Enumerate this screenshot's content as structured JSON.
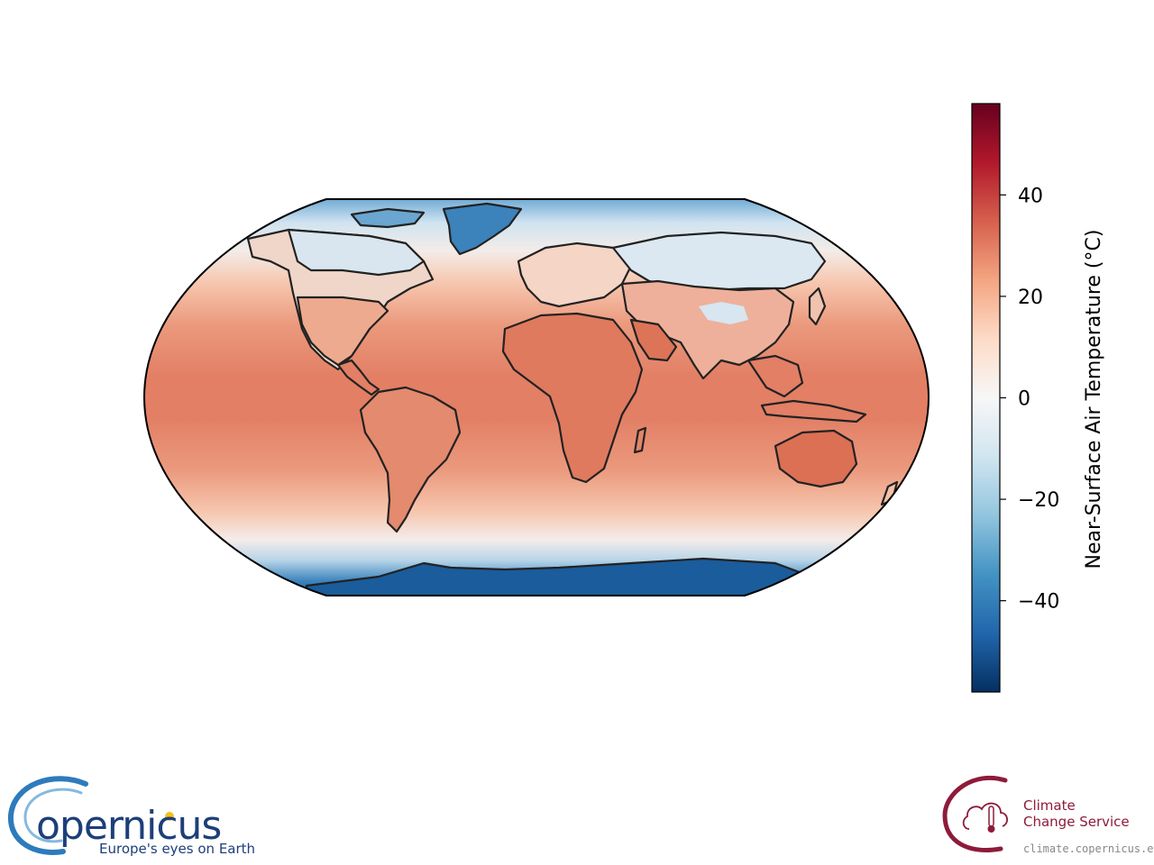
{
  "colorbar": {
    "label": "Near-Surface Air Temperature (°C)",
    "ticks": [
      {
        "value": 40,
        "label": "40"
      },
      {
        "value": 20,
        "label": "20"
      },
      {
        "value": 0,
        "label": "0"
      },
      {
        "value": -20,
        "label": "−20"
      },
      {
        "value": -40,
        "label": "−40"
      }
    ],
    "range": [
      -58,
      58
    ],
    "colormap": "RdBu_r",
    "stops": [
      "#053061",
      "#2166ac",
      "#4393c3",
      "#92c5de",
      "#d1e5f0",
      "#f7f7f7",
      "#fddbc7",
      "#f4a582",
      "#d6604d",
      "#b2182b",
      "#67001f"
    ]
  },
  "map": {
    "projection": "Robinson",
    "ocean_tropics_color": "#e8856a",
    "coastline_color": "#222222"
  },
  "logos": {
    "copernicus": {
      "name": "opernicus",
      "tagline": "Europe's eyes on Earth"
    },
    "c3s": {
      "line1": "Climate",
      "line2": "Change Service",
      "url": "climate.copernicus.eu"
    }
  }
}
